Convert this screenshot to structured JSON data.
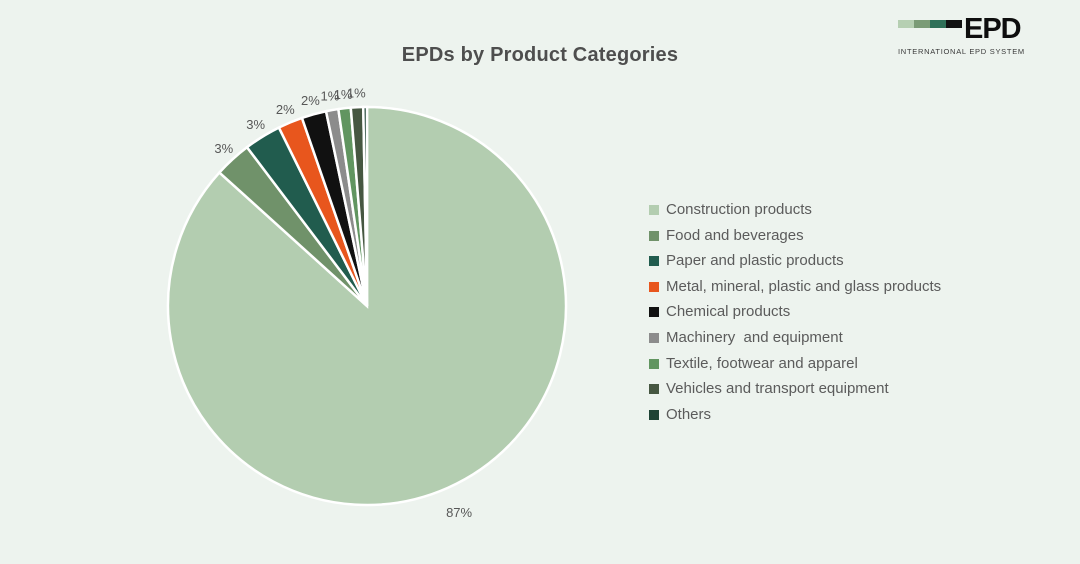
{
  "page": {
    "background_color": "#edf3ee"
  },
  "logo": {
    "name": "EPD",
    "subtitle": "INTERNATIONAL EPD SYSTEM",
    "bar_colors": [
      "#b6cfb2",
      "#7b9b76",
      "#2f7058",
      "#121212"
    ]
  },
  "chart_data": {
    "type": "pie",
    "title": "EPDs by Product Categories",
    "legend_position": "right",
    "donut": false,
    "slice_border_color": "#ffffff",
    "series": [
      {
        "label": "Construction products",
        "value": 86.7,
        "percent_label": "87%",
        "color": "#b3cdb0"
      },
      {
        "label": "Food and beverages",
        "value": 3,
        "percent_label": "3%",
        "color": "#70926a"
      },
      {
        "label": "Paper and plastic products",
        "value": 3,
        "percent_label": "3%",
        "color": "#215c4e"
      },
      {
        "label": "Metal, mineral, plastic and glass products",
        "value": 2,
        "percent_label": "2%",
        "color": "#e8561d"
      },
      {
        "label": "Chemical products",
        "value": 2,
        "percent_label": "2%",
        "color": "#111111"
      },
      {
        "label": "Machinery  and equipment",
        "value": 1,
        "percent_label": "1%",
        "color": "#8c8c8c"
      },
      {
        "label": "Textile, footwear and apparel",
        "value": 1,
        "percent_label": "1%",
        "color": "#619560"
      },
      {
        "label": "Vehicles and transport equipment",
        "value": 1,
        "percent_label": "1%",
        "color": "#465741"
      },
      {
        "label": "Others",
        "value": 0.3,
        "percent_label": "",
        "color": "#1e4334"
      }
    ]
  }
}
